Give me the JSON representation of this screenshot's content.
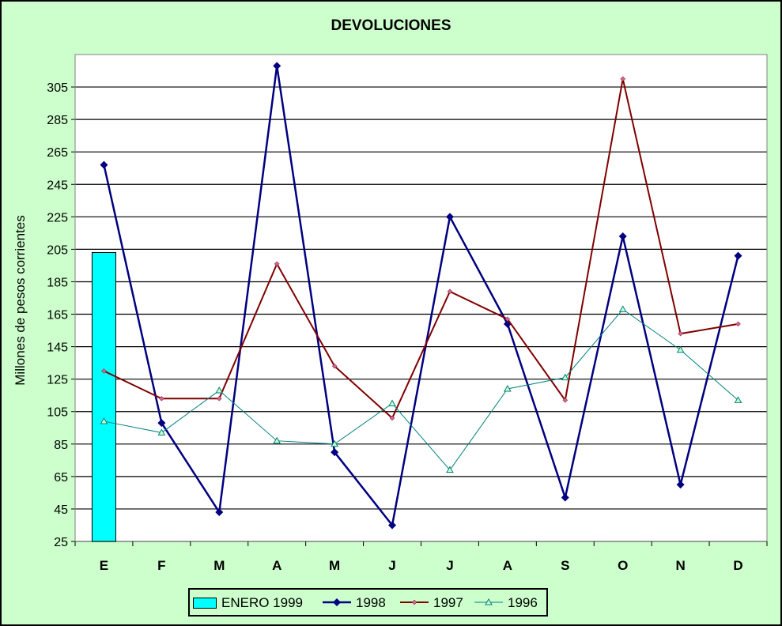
{
  "chart_data": {
    "type": "line",
    "title": "DEVOLUCIONES",
    "ylabel": "Millones de pesos corrientes",
    "xlabel": "",
    "ylim": [
      25,
      325
    ],
    "yticks": [
      25,
      45,
      65,
      85,
      105,
      125,
      145,
      165,
      185,
      205,
      225,
      245,
      265,
      285,
      305
    ],
    "categories": [
      "E",
      "F",
      "M",
      "A",
      "M",
      "J",
      "J",
      "A",
      "S",
      "O",
      "N",
      "D"
    ],
    "grid": true,
    "legend_position": "bottom",
    "bar_series": {
      "name": "ENERO 1999",
      "color": "#00ffff",
      "values": [
        203,
        null,
        null,
        null,
        null,
        null,
        null,
        null,
        null,
        null,
        null,
        null
      ]
    },
    "series": [
      {
        "name": "1998",
        "color": "#000080",
        "marker": "diamond",
        "values": [
          257,
          98,
          43,
          318,
          80,
          35,
          225,
          159,
          52,
          213,
          60,
          201
        ]
      },
      {
        "name": "1997",
        "color": "#800000",
        "marker": "small-diamond",
        "values": [
          130,
          113,
          113,
          196,
          133,
          101,
          179,
          162,
          112,
          310,
          153,
          159
        ]
      },
      {
        "name": "1996",
        "color": "#008080",
        "marker": "triangle",
        "values": [
          99,
          92,
          118,
          87,
          85,
          110,
          69,
          119,
          126,
          168,
          143,
          112
        ]
      }
    ]
  }
}
